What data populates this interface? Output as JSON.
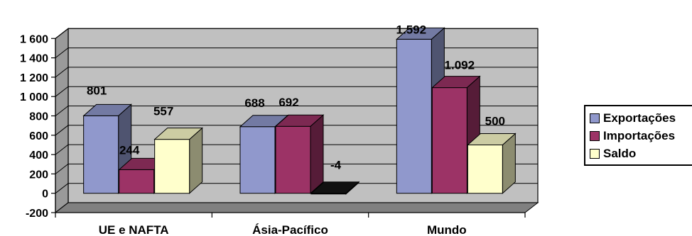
{
  "chart_data": {
    "type": "bar",
    "three_d": true,
    "categories": [
      "UE e NAFTA",
      "Ásia-Pacífico",
      "Mundo"
    ],
    "series": [
      {
        "name": "Exportações",
        "values": [
          801,
          688,
          1592
        ],
        "labels": [
          "801",
          "688",
          "1.592"
        ],
        "color": "#9098CC"
      },
      {
        "name": "Importações",
        "values": [
          244,
          692,
          1092
        ],
        "labels": [
          "244",
          "692",
          "1.092"
        ],
        "color": "#9C3366"
      },
      {
        "name": "Saldo",
        "values": [
          557,
          -4,
          500
        ],
        "labels": [
          "557",
          "-4",
          "500"
        ],
        "color": "#FFFFCC"
      }
    ],
    "yticks": [
      1600,
      1400,
      1200,
      1000,
      800,
      600,
      400,
      200,
      0,
      -200
    ],
    "ytick_labels": [
      "1 600",
      "1 400",
      "1 200",
      "1 000",
      "800",
      "600",
      "400",
      "200",
      "0",
      "-200"
    ],
    "ylim": [
      -200,
      1600
    ],
    "grid": true,
    "legend_position": "right",
    "wall_color": "#C0C0C0",
    "floor_color": "#808080"
  }
}
